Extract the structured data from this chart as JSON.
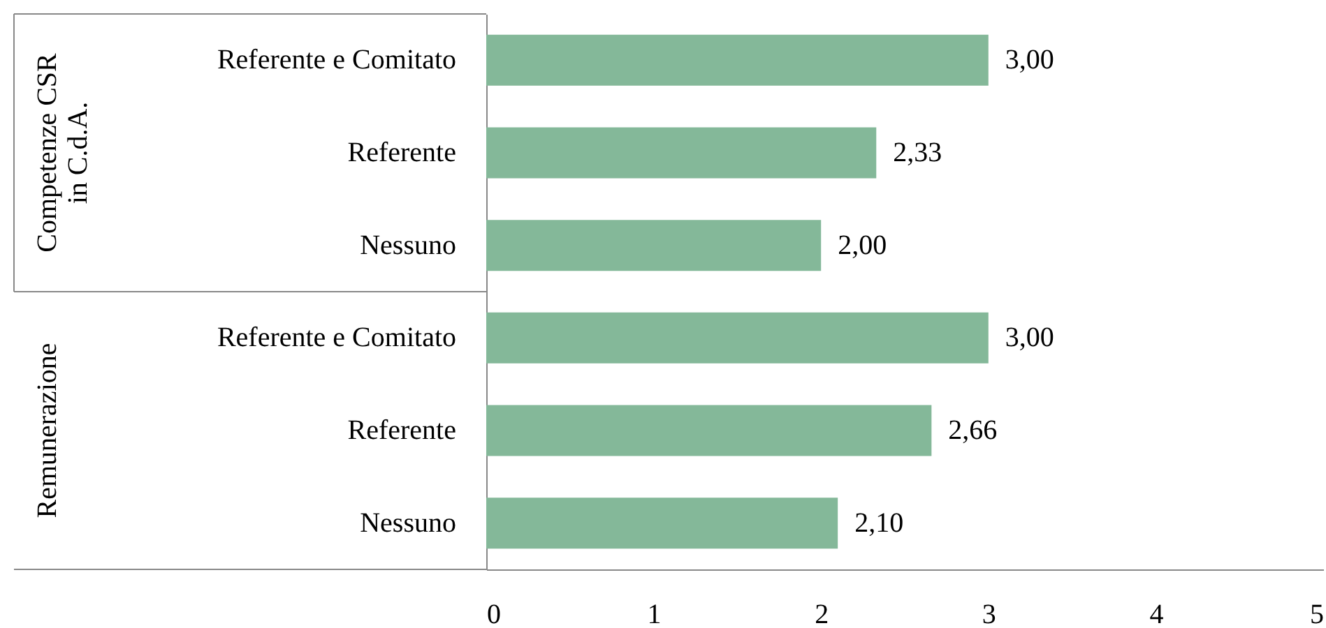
{
  "chart_data": {
    "type": "bar",
    "orientation": "horizontal",
    "categories": [
      "Referente e Comitato",
      "Referente",
      "Nessuno",
      "Referente e Comitato",
      "Referente",
      "Nessuno"
    ],
    "values": [
      3.0,
      2.33,
      2.0,
      3.0,
      2.66,
      2.1
    ],
    "value_labels": [
      "3,00",
      "2,33",
      "2,00",
      "3,00",
      "2,66",
      "2,10"
    ],
    "color": "#84b899",
    "xlim": [
      0,
      5
    ],
    "xticks": [
      0,
      1,
      2,
      3,
      4,
      5
    ],
    "grid": false,
    "annotations": [
      "Competenze CSR\nin C.d.A.",
      "Remunerazione"
    ]
  }
}
